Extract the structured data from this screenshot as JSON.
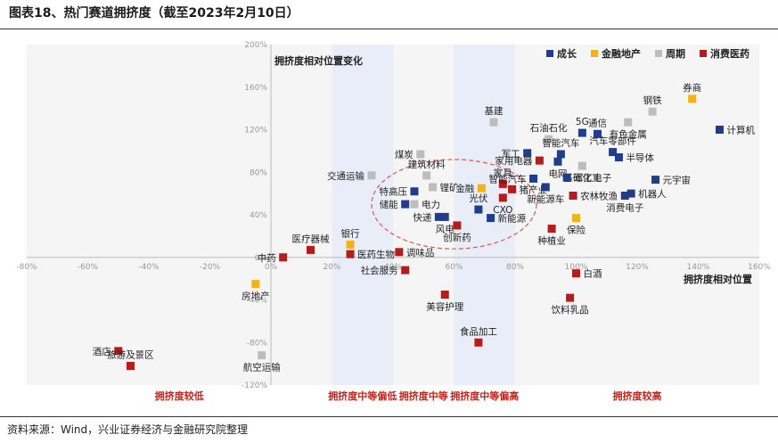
{
  "header": {
    "title": "图表18、热门赛道拥挤度（截至2023年2月10日）"
  },
  "footer": {
    "source": "资料来源：Wind，兴业证券经济与金融研究院整理"
  },
  "colors": {
    "成长": "#1f3d8c",
    "金融地产": "#f2b21c",
    "周期": "#bdbdbd",
    "消费医药": "#b51c1c",
    "band_fill": "#e9edf7",
    "band_label": "#c0271f",
    "ellipse": "#e05a4a"
  },
  "chart_data": {
    "type": "scatter",
    "title": "",
    "xlabel": "拥挤度相对位置",
    "ylabel": "拥挤度相对位置变化",
    "xlim": [
      -0.8,
      1.6
    ],
    "ylim": [
      -1.2,
      2.0
    ],
    "x_ticks": [
      "-80%",
      "-60%",
      "-40%",
      "-20%",
      "0%",
      "20%",
      "40%",
      "60%",
      "80%",
      "100%",
      "120%",
      "140%",
      "160%"
    ],
    "y_ticks": [
      "200%",
      "160%",
      "120%",
      "80%",
      "40%",
      "0%",
      "-40%",
      "-80%",
      "-120%"
    ],
    "x_tick_values": [
      -0.8,
      -0.6,
      -0.4,
      -0.2,
      0,
      0.2,
      0.4,
      0.6,
      0.8,
      1.0,
      1.2,
      1.4,
      1.6
    ],
    "y_tick_values": [
      2.0,
      1.6,
      1.2,
      0.8,
      0.4,
      0,
      -0.4,
      -0.8,
      -1.2
    ],
    "legend": [
      "成长",
      "金融地产",
      "周期",
      "消费医药"
    ],
    "legend_position": "top-right",
    "zones": [
      {
        "label": "拥挤度较低",
        "x_range": [
          -0.8,
          0.2
        ],
        "shaded": false
      },
      {
        "label": "拥挤度中等偏低",
        "x_range": [
          0.2,
          0.4
        ],
        "shaded": true
      },
      {
        "label": "拥挤度中等",
        "x_range": [
          0.4,
          0.6
        ],
        "shaded": false
      },
      {
        "label": "拥挤度中等偏高",
        "x_range": [
          0.6,
          0.8
        ],
        "shaded": true
      },
      {
        "label": "拥挤度较高",
        "x_range": [
          0.8,
          1.6
        ],
        "shaded": false
      }
    ],
    "ellipse": {
      "center": [
        0.6,
        0.5
      ],
      "radii": [
        0.27,
        0.42
      ]
    },
    "points": [
      {
        "name": "券商",
        "group": "金融地产",
        "x": 1.38,
        "y": 1.49,
        "label_side": "above"
      },
      {
        "name": "钢铁",
        "group": "周期",
        "x": 1.25,
        "y": 1.37,
        "label_side": "above"
      },
      {
        "name": "计算机",
        "group": "成长",
        "x": 1.47,
        "y": 1.2,
        "label_side": "right"
      },
      {
        "name": "5G",
        "group": "成长",
        "x": 1.02,
        "y": 1.17,
        "label_side": "above"
      },
      {
        "name": "通信",
        "group": "成长",
        "x": 1.07,
        "y": 1.16,
        "label_side": "above"
      },
      {
        "name": "有色金属",
        "group": "周期",
        "x": 1.17,
        "y": 1.27,
        "label_side": "below"
      },
      {
        "name": "基建",
        "group": "周期",
        "x": 0.73,
        "y": 1.27,
        "label_side": "above"
      },
      {
        "name": "石油石化",
        "group": "周期",
        "x": 0.91,
        "y": 1.11,
        "label_side": "above"
      },
      {
        "name": "汽车零部件",
        "group": "成长",
        "x": 1.12,
        "y": 0.99,
        "label_side": "above"
      },
      {
        "name": "半导体",
        "group": "成长",
        "x": 1.14,
        "y": 0.94,
        "label_side": "right"
      },
      {
        "name": "军工",
        "group": "成长",
        "x": 0.84,
        "y": 0.98,
        "label_side": "left"
      },
      {
        "name": "智能汽车",
        "group": "成长",
        "x": 0.95,
        "y": 0.97,
        "label_side": "above"
      },
      {
        "name": "家用电器",
        "group": "消费医药",
        "x": 0.88,
        "y": 0.91,
        "label_side": "left"
      },
      {
        "name": "电网",
        "group": "成长",
        "x": 0.94,
        "y": 0.9,
        "label_side": "below"
      },
      {
        "name": "基础化工",
        "group": "周期",
        "x": 1.02,
        "y": 0.86,
        "label_side": "below"
      },
      {
        "name": "煤炭",
        "group": "周期",
        "x": 0.49,
        "y": 0.97,
        "label_side": "left"
      },
      {
        "name": "交通运输",
        "group": "周期",
        "x": 0.33,
        "y": 0.77,
        "label_side": "left"
      },
      {
        "name": "建筑材料",
        "group": "周期",
        "x": 0.51,
        "y": 0.77,
        "label_side": "above"
      },
      {
        "name": "家具",
        "group": "消费医药",
        "x": 0.76,
        "y": 0.69,
        "label_side": "above"
      },
      {
        "name": "智能汽车",
        "group": "成长",
        "x": 0.86,
        "y": 0.74,
        "label_side": "left"
      },
      {
        "name": "军工电子",
        "group": "成长",
        "x": 0.97,
        "y": 0.75,
        "label_side": "right"
      },
      {
        "name": "元宇宙",
        "group": "成长",
        "x": 1.26,
        "y": 0.73,
        "label_side": "right"
      },
      {
        "name": "锂矿",
        "group": "周期",
        "x": 0.53,
        "y": 0.66,
        "label_side": "right"
      },
      {
        "name": "金融",
        "group": "金融地产",
        "x": 0.69,
        "y": 0.65,
        "label_side": "left"
      },
      {
        "name": "特高压",
        "group": "成长",
        "x": 0.47,
        "y": 0.62,
        "label_side": "left"
      },
      {
        "name": "猪产业",
        "group": "消费医药",
        "x": 0.79,
        "y": 0.64,
        "label_side": "right"
      },
      {
        "name": "新能源车",
        "group": "成长",
        "x": 0.9,
        "y": 0.66,
        "label_side": "below"
      },
      {
        "name": "机器人",
        "group": "成长",
        "x": 1.18,
        "y": 0.6,
        "label_side": "right"
      },
      {
        "name": "农林牧渔",
        "group": "消费医药",
        "x": 0.99,
        "y": 0.58,
        "label_side": "right"
      },
      {
        "name": "储能",
        "group": "成长",
        "x": 0.44,
        "y": 0.5,
        "label_side": "left"
      },
      {
        "name": "电力",
        "group": "周期",
        "x": 0.47,
        "y": 0.5,
        "label_side": "right"
      },
      {
        "name": "光伏",
        "group": "成长",
        "x": 0.68,
        "y": 0.45,
        "label_side": "above"
      },
      {
        "name": "CXO",
        "group": "消费医药",
        "x": 0.76,
        "y": 0.56,
        "label_side": "below"
      },
      {
        "name": "消费电子",
        "group": "成长",
        "x": 1.16,
        "y": 0.58,
        "label_side": "below"
      },
      {
        "name": "快递",
        "group": "成长",
        "x": 0.55,
        "y": 0.38,
        "label_side": "left"
      },
      {
        "name": "风电",
        "group": "成长",
        "x": 0.57,
        "y": 0.38,
        "label_side": "below"
      },
      {
        "name": "新能源",
        "group": "成长",
        "x": 0.72,
        "y": 0.37,
        "label_side": "right"
      },
      {
        "name": "保险",
        "group": "金融地产",
        "x": 1.0,
        "y": 0.37,
        "label_side": "below"
      },
      {
        "name": "创新药",
        "group": "消费医药",
        "x": 0.61,
        "y": 0.3,
        "label_side": "below"
      },
      {
        "name": "种植业",
        "group": "消费医药",
        "x": 0.92,
        "y": 0.27,
        "label_side": "below"
      },
      {
        "name": "银行",
        "group": "金融地产",
        "x": 0.26,
        "y": 0.12,
        "label_side": "above"
      },
      {
        "name": "医疗器械",
        "group": "消费医药",
        "x": 0.13,
        "y": 0.07,
        "label_side": "above"
      },
      {
        "name": "调味品",
        "group": "消费医药",
        "x": 0.42,
        "y": 0.05,
        "label_side": "right"
      },
      {
        "name": "中药",
        "group": "消费医药",
        "x": 0.04,
        "y": 0.0,
        "label_side": "left"
      },
      {
        "name": "医药生物",
        "group": "消费医药",
        "x": 0.26,
        "y": 0.03,
        "label_side": "right"
      },
      {
        "name": "社会服务",
        "group": "消费医药",
        "x": 0.44,
        "y": -0.12,
        "label_side": "left"
      },
      {
        "name": "白酒",
        "group": "消费医药",
        "x": 1.0,
        "y": -0.15,
        "label_side": "right"
      },
      {
        "name": "房地产",
        "group": "金融地产",
        "x": -0.05,
        "y": -0.25,
        "label_side": "below"
      },
      {
        "name": "美容护理",
        "group": "消费医药",
        "x": 0.57,
        "y": -0.35,
        "label_side": "below"
      },
      {
        "name": "饮料乳品",
        "group": "消费医药",
        "x": 0.98,
        "y": -0.38,
        "label_side": "below"
      },
      {
        "name": "食品加工",
        "group": "消费医药",
        "x": 0.68,
        "y": -0.8,
        "label_side": "above"
      },
      {
        "name": "酒店",
        "group": "消费医药",
        "x": -0.5,
        "y": -0.88,
        "label_side": "left"
      },
      {
        "name": "旅游及景区",
        "group": "消费医药",
        "x": -0.46,
        "y": -1.02,
        "label_side": "above"
      },
      {
        "name": "航空运输",
        "group": "周期",
        "x": -0.03,
        "y": -0.92,
        "label_side": "below"
      }
    ]
  }
}
